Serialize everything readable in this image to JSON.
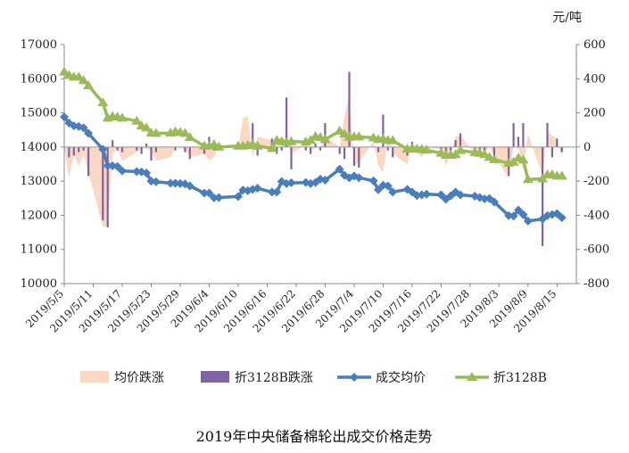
{
  "chart_data": {
    "type": "line",
    "title": "2019年中央储备棉轮出成交价格走势",
    "y_right_unit": "元/吨",
    "ylim_left": [
      10000,
      17000
    ],
    "yticks_left": [
      10000,
      11000,
      12000,
      13000,
      14000,
      15000,
      16000,
      17000
    ],
    "ylim_right": [
      -800,
      600
    ],
    "yticks_right": [
      -800,
      -600,
      -400,
      -200,
      0,
      200,
      400,
      600
    ],
    "x_tick_labels": [
      "2019/5/5",
      "2019/5/11",
      "2019/5/17",
      "2019/5/23",
      "2019/5/29",
      "2019/6/4",
      "2019/6/10",
      "2019/6/16",
      "2019/6/22",
      "2019/6/28",
      "2019/7/4",
      "2019/7/10",
      "2019/7/16",
      "2019/7/22",
      "2019/7/28",
      "2019/8/3",
      "2019/8/9",
      "2019/8/15"
    ],
    "legend_position": "bottom",
    "grid": false,
    "series": [
      {
        "name": "均价跌涨",
        "kind": "area",
        "axis": "right",
        "color": "#fbd8c4",
        "x": [
          "2019/5/5",
          "2019/5/6",
          "2019/5/7",
          "2019/5/8",
          "2019/5/9",
          "2019/5/10",
          "2019/5/13",
          "2019/5/14",
          "2019/5/15",
          "2019/5/16",
          "2019/5/17",
          "2019/5/20",
          "2019/5/21",
          "2019/5/22",
          "2019/5/23",
          "2019/5/24",
          "2019/5/27",
          "2019/5/28",
          "2019/5/29",
          "2019/5/30",
          "2019/5/31",
          "2019/6/3",
          "2019/6/4",
          "2019/6/5",
          "2019/6/6",
          "2019/6/10",
          "2019/6/11",
          "2019/6/12",
          "2019/6/13",
          "2019/6/14",
          "2019/6/17",
          "2019/6/18",
          "2019/6/19",
          "2019/6/20",
          "2019/6/21",
          "2019/6/24",
          "2019/6/25",
          "2019/6/26",
          "2019/6/27",
          "2019/6/28",
          "2019/7/1",
          "2019/7/2",
          "2019/7/3",
          "2019/7/4",
          "2019/7/5",
          "2019/7/8",
          "2019/7/9",
          "2019/7/10",
          "2019/7/11",
          "2019/7/12",
          "2019/7/15",
          "2019/7/16",
          "2019/7/17",
          "2019/7/18",
          "2019/7/19",
          "2019/7/22",
          "2019/7/23",
          "2019/7/24",
          "2019/7/25",
          "2019/7/26",
          "2019/7/29",
          "2019/7/30",
          "2019/7/31",
          "2019/8/1",
          "2019/8/2",
          "2019/8/5",
          "2019/8/6",
          "2019/8/7",
          "2019/8/8",
          "2019/8/9",
          "2019/8/12",
          "2019/8/13",
          "2019/8/14",
          "2019/8/15",
          "2019/8/16"
        ],
        "values": [
          0,
          -180,
          -40,
          -110,
          -40,
          -150,
          -470,
          -460,
          -40,
          -10,
          -80,
          -30,
          -10,
          -10,
          -20,
          -80,
          -60,
          0,
          -10,
          -10,
          -60,
          -40,
          -80,
          -60,
          0,
          -10,
          170,
          180,
          -60,
          60,
          40,
          0,
          -10,
          100,
          -40,
          20,
          -10,
          -10,
          0,
          60,
          0,
          180,
          300,
          -110,
          -90,
          30,
          -110,
          -150,
          70,
          -40,
          -100,
          40,
          -30,
          -60,
          -10,
          -10,
          -110,
          -30,
          60,
          70,
          -40,
          -10,
          -30,
          0,
          -50,
          -180,
          0,
          -10,
          -130,
          80,
          -170,
          90,
          70,
          40,
          -60
        ]
      },
      {
        "name": "折3128B跌涨",
        "kind": "bar",
        "axis": "right",
        "color": "#8064a2",
        "x": [
          "2019/5/5",
          "2019/5/6",
          "2019/5/7",
          "2019/5/8",
          "2019/5/9",
          "2019/5/10",
          "2019/5/13",
          "2019/5/14",
          "2019/5/15",
          "2019/5/16",
          "2019/5/17",
          "2019/5/20",
          "2019/5/21",
          "2019/5/22",
          "2019/5/23",
          "2019/5/24",
          "2019/5/27",
          "2019/5/28",
          "2019/5/29",
          "2019/5/30",
          "2019/5/31",
          "2019/6/3",
          "2019/6/4",
          "2019/6/5",
          "2019/6/6",
          "2019/6/10",
          "2019/6/11",
          "2019/6/12",
          "2019/6/13",
          "2019/6/14",
          "2019/6/17",
          "2019/6/18",
          "2019/6/19",
          "2019/6/20",
          "2019/6/21",
          "2019/6/24",
          "2019/6/25",
          "2019/6/26",
          "2019/6/27",
          "2019/6/28",
          "2019/7/1",
          "2019/7/2",
          "2019/7/3",
          "2019/7/4",
          "2019/7/5",
          "2019/7/8",
          "2019/7/9",
          "2019/7/10",
          "2019/7/11",
          "2019/7/12",
          "2019/7/15",
          "2019/7/16",
          "2019/7/17",
          "2019/7/18",
          "2019/7/19",
          "2019/7/22",
          "2019/7/23",
          "2019/7/24",
          "2019/7/25",
          "2019/7/26",
          "2019/7/29",
          "2019/7/30",
          "2019/7/31",
          "2019/8/1",
          "2019/8/2",
          "2019/8/5",
          "2019/8/6",
          "2019/8/7",
          "2019/8/8",
          "2019/8/9",
          "2019/8/12",
          "2019/8/13",
          "2019/8/14",
          "2019/8/15",
          "2019/8/16"
        ],
        "values": [
          0,
          -60,
          -50,
          -30,
          -20,
          -170,
          -430,
          -470,
          40,
          -20,
          -30,
          -20,
          -40,
          20,
          -80,
          -30,
          0,
          -20,
          0,
          -30,
          -70,
          -40,
          60,
          -20,
          0,
          0,
          0,
          30,
          140,
          -50,
          50,
          -40,
          -20,
          290,
          -130,
          -20,
          -40,
          20,
          -20,
          140,
          -40,
          -70,
          440,
          -110,
          -120,
          0,
          -30,
          190,
          -20,
          -60,
          -50,
          30,
          -30,
          -20,
          -20,
          -20,
          -50,
          -20,
          40,
          80,
          -30,
          -40,
          -20,
          0,
          -80,
          -170,
          140,
          60,
          140,
          0,
          -580,
          140,
          -60,
          50,
          -30
        ]
      },
      {
        "name": "成交均价",
        "kind": "line",
        "axis": "left",
        "color": "#4a7ebb",
        "marker": "diamond",
        "x": [
          "2019/5/5",
          "2019/5/6",
          "2019/5/7",
          "2019/5/8",
          "2019/5/9",
          "2019/5/10",
          "2019/5/13",
          "2019/5/14",
          "2019/5/15",
          "2019/5/16",
          "2019/5/17",
          "2019/5/20",
          "2019/5/21",
          "2019/5/22",
          "2019/5/23",
          "2019/5/24",
          "2019/5/27",
          "2019/5/28",
          "2019/5/29",
          "2019/5/30",
          "2019/5/31",
          "2019/6/3",
          "2019/6/4",
          "2019/6/5",
          "2019/6/6",
          "2019/6/10",
          "2019/6/11",
          "2019/6/12",
          "2019/6/13",
          "2019/6/14",
          "2019/6/17",
          "2019/6/18",
          "2019/6/19",
          "2019/6/20",
          "2019/6/21",
          "2019/6/24",
          "2019/6/25",
          "2019/6/26",
          "2019/6/27",
          "2019/6/28",
          "2019/7/1",
          "2019/7/2",
          "2019/7/3",
          "2019/7/4",
          "2019/7/5",
          "2019/7/8",
          "2019/7/9",
          "2019/7/10",
          "2019/7/11",
          "2019/7/12",
          "2019/7/15",
          "2019/7/16",
          "2019/7/17",
          "2019/7/18",
          "2019/7/19",
          "2019/7/22",
          "2019/7/23",
          "2019/7/24",
          "2019/7/25",
          "2019/7/26",
          "2019/7/29",
          "2019/7/30",
          "2019/7/31",
          "2019/8/1",
          "2019/8/2",
          "2019/8/5",
          "2019/8/6",
          "2019/8/7",
          "2019/8/8",
          "2019/8/9",
          "2019/8/12",
          "2019/8/13",
          "2019/8/14",
          "2019/8/15",
          "2019/8/16"
        ],
        "values": [
          14880,
          14700,
          14620,
          14600,
          14560,
          14400,
          13930,
          13450,
          13450,
          13430,
          13300,
          13280,
          13270,
          13240,
          13000,
          12980,
          12940,
          12940,
          12930,
          12920,
          12860,
          12650,
          12650,
          12510,
          12520,
          12550,
          12740,
          12720,
          12760,
          12790,
          12680,
          12680,
          12990,
          12930,
          12950,
          12960,
          12930,
          12960,
          13060,
          13030,
          13350,
          13170,
          13100,
          13150,
          13100,
          13010,
          12750,
          12880,
          12860,
          12680,
          12760,
          12680,
          12580,
          12600,
          12620,
          12600,
          12470,
          12570,
          12680,
          12600,
          12560,
          12520,
          12480,
          12490,
          12390,
          11990,
          11980,
          12150,
          12020,
          11830,
          11890,
          11990,
          12020,
          12050,
          11930
        ]
      },
      {
        "name": "折3128B",
        "kind": "line",
        "axis": "left",
        "color": "#9bbb59",
        "marker": "triangle",
        "x": [
          "2019/5/5",
          "2019/5/6",
          "2019/5/7",
          "2019/5/8",
          "2019/5/9",
          "2019/5/10",
          "2019/5/13",
          "2019/5/14",
          "2019/5/15",
          "2019/5/16",
          "2019/5/17",
          "2019/5/20",
          "2019/5/21",
          "2019/5/22",
          "2019/5/23",
          "2019/5/24",
          "2019/5/27",
          "2019/5/28",
          "2019/5/29",
          "2019/5/30",
          "2019/5/31",
          "2019/6/3",
          "2019/6/4",
          "2019/6/5",
          "2019/6/6",
          "2019/6/10",
          "2019/6/11",
          "2019/6/12",
          "2019/6/13",
          "2019/6/14",
          "2019/6/17",
          "2019/6/18",
          "2019/6/19",
          "2019/6/20",
          "2019/6/21",
          "2019/6/24",
          "2019/6/25",
          "2019/6/26",
          "2019/6/27",
          "2019/6/28",
          "2019/7/1",
          "2019/7/2",
          "2019/7/3",
          "2019/7/4",
          "2019/7/5",
          "2019/7/8",
          "2019/7/9",
          "2019/7/10",
          "2019/7/11",
          "2019/7/12",
          "2019/7/15",
          "2019/7/16",
          "2019/7/17",
          "2019/7/18",
          "2019/7/19",
          "2019/7/22",
          "2019/7/23",
          "2019/7/24",
          "2019/7/25",
          "2019/7/26",
          "2019/7/29",
          "2019/7/30",
          "2019/7/31",
          "2019/8/1",
          "2019/8/2",
          "2019/8/5",
          "2019/8/6",
          "2019/8/7",
          "2019/8/8",
          "2019/8/9",
          "2019/8/12",
          "2019/8/13",
          "2019/8/14",
          "2019/8/15",
          "2019/8/16"
        ],
        "values": [
          16200,
          16100,
          16050,
          16050,
          15950,
          15800,
          15300,
          14850,
          14900,
          14880,
          14850,
          14760,
          14620,
          14560,
          14410,
          14400,
          14410,
          14450,
          14430,
          14400,
          14280,
          14030,
          14030,
          14070,
          14000,
          14030,
          14030,
          14050,
          14080,
          14030,
          13960,
          14200,
          14160,
          14140,
          14160,
          14150,
          14200,
          14310,
          14280,
          14220,
          14470,
          14380,
          14290,
          14300,
          14300,
          14270,
          14220,
          14240,
          14200,
          14190,
          13940,
          13960,
          13940,
          13930,
          13910,
          13820,
          13760,
          13760,
          13780,
          13900,
          13840,
          13820,
          13780,
          13700,
          13630,
          13530,
          13560,
          13680,
          13620,
          13050,
          13070,
          13190,
          13190,
          13150,
          13150
        ]
      }
    ]
  }
}
